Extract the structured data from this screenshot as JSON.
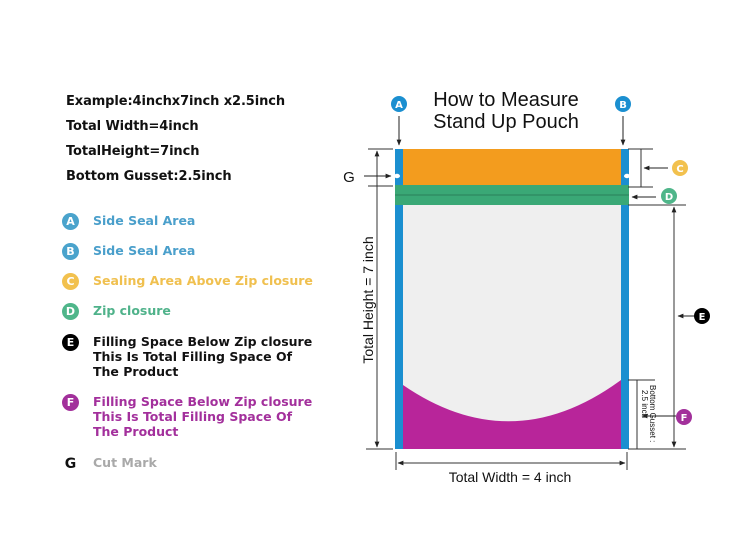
{
  "specs": {
    "example": "Example:4inchx7inch x2.5inch",
    "total_width": "Total Width=4inch",
    "total_height": "TotalHeight=7inch",
    "bottom_gusset": "Bottom Gusset:2.5inch"
  },
  "legend": [
    {
      "letter": "A",
      "text": [
        "Side Seal Area"
      ],
      "color": "#4aa3cc",
      "text_color": "#4a9fcb"
    },
    {
      "letter": "B",
      "text": [
        "Side Seal Area"
      ],
      "color": "#4aa3cc",
      "text_color": "#4a9fcb"
    },
    {
      "letter": "C",
      "text": [
        "Sealing Area Above Zip closure"
      ],
      "color": "#f2c14e",
      "text_color": "#f0c04f"
    },
    {
      "letter": "D",
      "text": [
        "Zip closure"
      ],
      "color": "#4fb68a",
      "text_color": "#4fb28a"
    },
    {
      "letter": "E",
      "text": [
        "Filling Space Below Zip closure",
        "This Is Total Filling Space Of",
        "The Product"
      ],
      "color": "#000000",
      "text_color": "#111111"
    },
    {
      "letter": "F",
      "text": [
        "Filling Space Below Zip closure",
        "This Is Total Filling Space Of",
        "The Product"
      ],
      "color": "#a2309b",
      "text_color": "#a3309c"
    },
    {
      "letter": "G",
      "text": [
        "Cut Mark"
      ],
      "color": "#111111",
      "text_color": "#a9a9a9"
    }
  ],
  "diagram": {
    "title_line1": "How to Measure",
    "title_line2": "Stand Up Pouch",
    "label_a": "A",
    "label_b": "B",
    "label_c": "C",
    "label_d": "D",
    "label_e": "E",
    "label_f": "F",
    "label_g": "G",
    "total_height_label": "Total Height = 7 inch",
    "total_width_label": "Total Width = 4 inch",
    "gusset_label_line1": "Bottom Gusset :",
    "gusset_label_line2": "2.5 inch",
    "colors": {
      "side_seal": "#1b8fd0",
      "top_seal": "#f39c1e",
      "zip": "#3aa876",
      "body": "#efefef",
      "gusset": "#b8259a"
    }
  }
}
